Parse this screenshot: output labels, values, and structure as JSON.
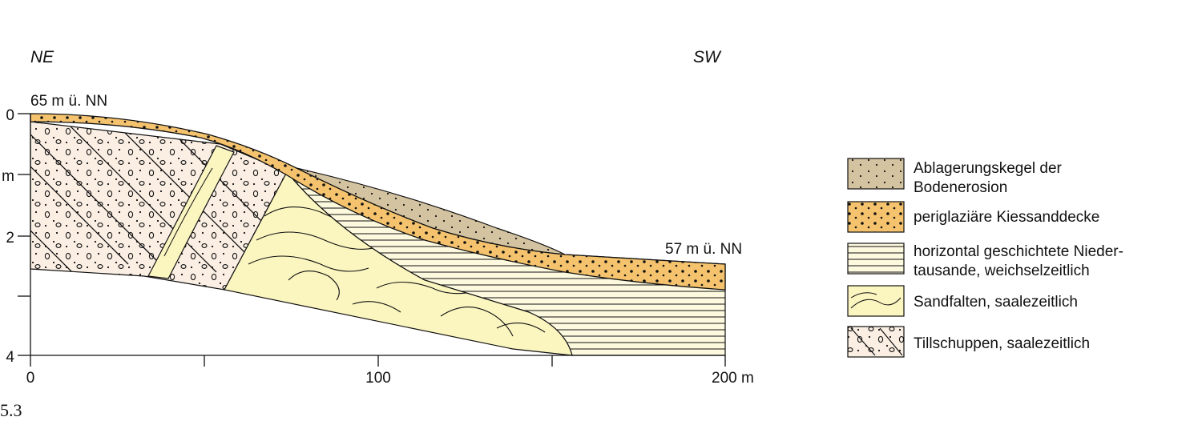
{
  "figure": {
    "direction_left": "NE",
    "direction_right": "SW",
    "elevation_left": "65 m ü. NN",
    "elevation_right": "57 m ü. NN",
    "y_axis_labels": [
      "0",
      "m",
      "2",
      "4"
    ],
    "x_axis_labels": [
      "0",
      "100",
      "200 m"
    ],
    "figure_number": "5.3"
  },
  "legend": [
    {
      "key": "bodenerosion",
      "lines": [
        "Ablagerungskegel der",
        "Bodenerosion"
      ],
      "color": "#d4c3a0"
    },
    {
      "key": "kiessanddecke",
      "lines": [
        "periglaziäre Kiessanddecke"
      ],
      "color": "#f5c36e"
    },
    {
      "key": "niedertausande",
      "lines": [
        "horizontal geschichtete Nieder-",
        "tausande, weichselzeitlich"
      ],
      "color": "#fdf9df"
    },
    {
      "key": "sandfalten",
      "lines": [
        "Sandfalten, saalezeitlich"
      ],
      "color": "#fbf5c0"
    },
    {
      "key": "tillschuppen",
      "lines": [
        "Tillschuppen, saalezeitlich"
      ],
      "color": "#fbefe4"
    }
  ],
  "colors": {
    "outline": "#111111",
    "kies": "#f5c36e",
    "erosion": "#d4c3a0",
    "sandfalten": "#fbf5c0",
    "niedertau": "#fdf9df",
    "till": "#fbefe4"
  }
}
